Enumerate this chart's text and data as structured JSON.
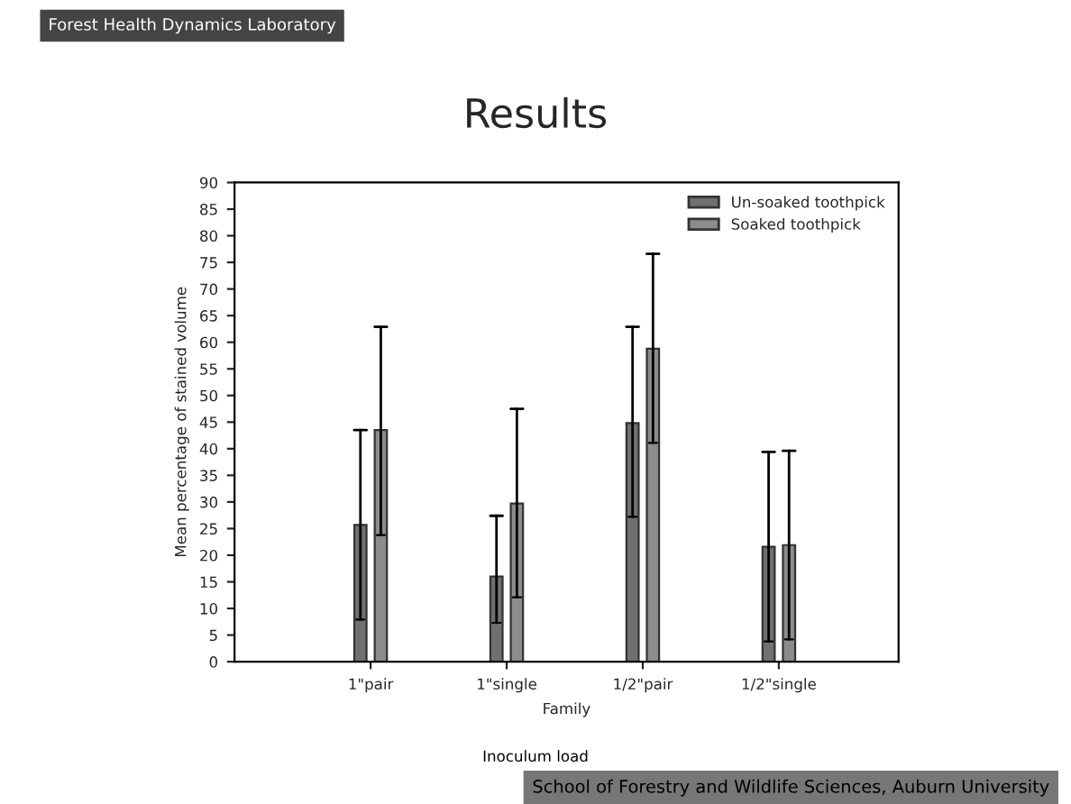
{
  "chart_data": {
    "type": "bar",
    "title": "Results",
    "xlabel": "Family",
    "ylabel": "Mean percentage of stained volume",
    "annotations": [
      "Forest Health Dynamics Laboratory",
      "Inoculum load",
      "School of Forestry and Wildlife Sciences, Auburn University"
    ],
    "categories": [
      "1\"pair",
      "1\"single",
      "1/2\"pair",
      "1/2\"single"
    ],
    "series": [
      {
        "name": "Un-soaked toothpick",
        "color": "#707070",
        "values": [
          25.7,
          16.0,
          44.8,
          21.6
        ],
        "errors": [
          [
            7.9,
            43.5
          ],
          [
            7.3,
            27.4
          ],
          [
            27.2,
            62.9
          ],
          [
            3.8,
            39.4
          ]
        ]
      },
      {
        "name": "Soaked toothpick",
        "color": "#8c8c8c",
        "values": [
          43.5,
          29.7,
          58.8,
          21.9
        ],
        "errors": [
          [
            23.8,
            62.9
          ],
          [
            12.1,
            47.5
          ],
          [
            41.1,
            76.6
          ],
          [
            4.2,
            39.6
          ]
        ]
      }
    ],
    "ylim": [
      0,
      90
    ],
    "yticks": [
      0,
      5,
      10,
      15,
      20,
      25,
      30,
      35,
      40,
      45,
      50,
      55,
      60,
      65,
      70,
      75,
      80,
      85,
      90
    ],
    "grid": false,
    "legend": "top right"
  }
}
